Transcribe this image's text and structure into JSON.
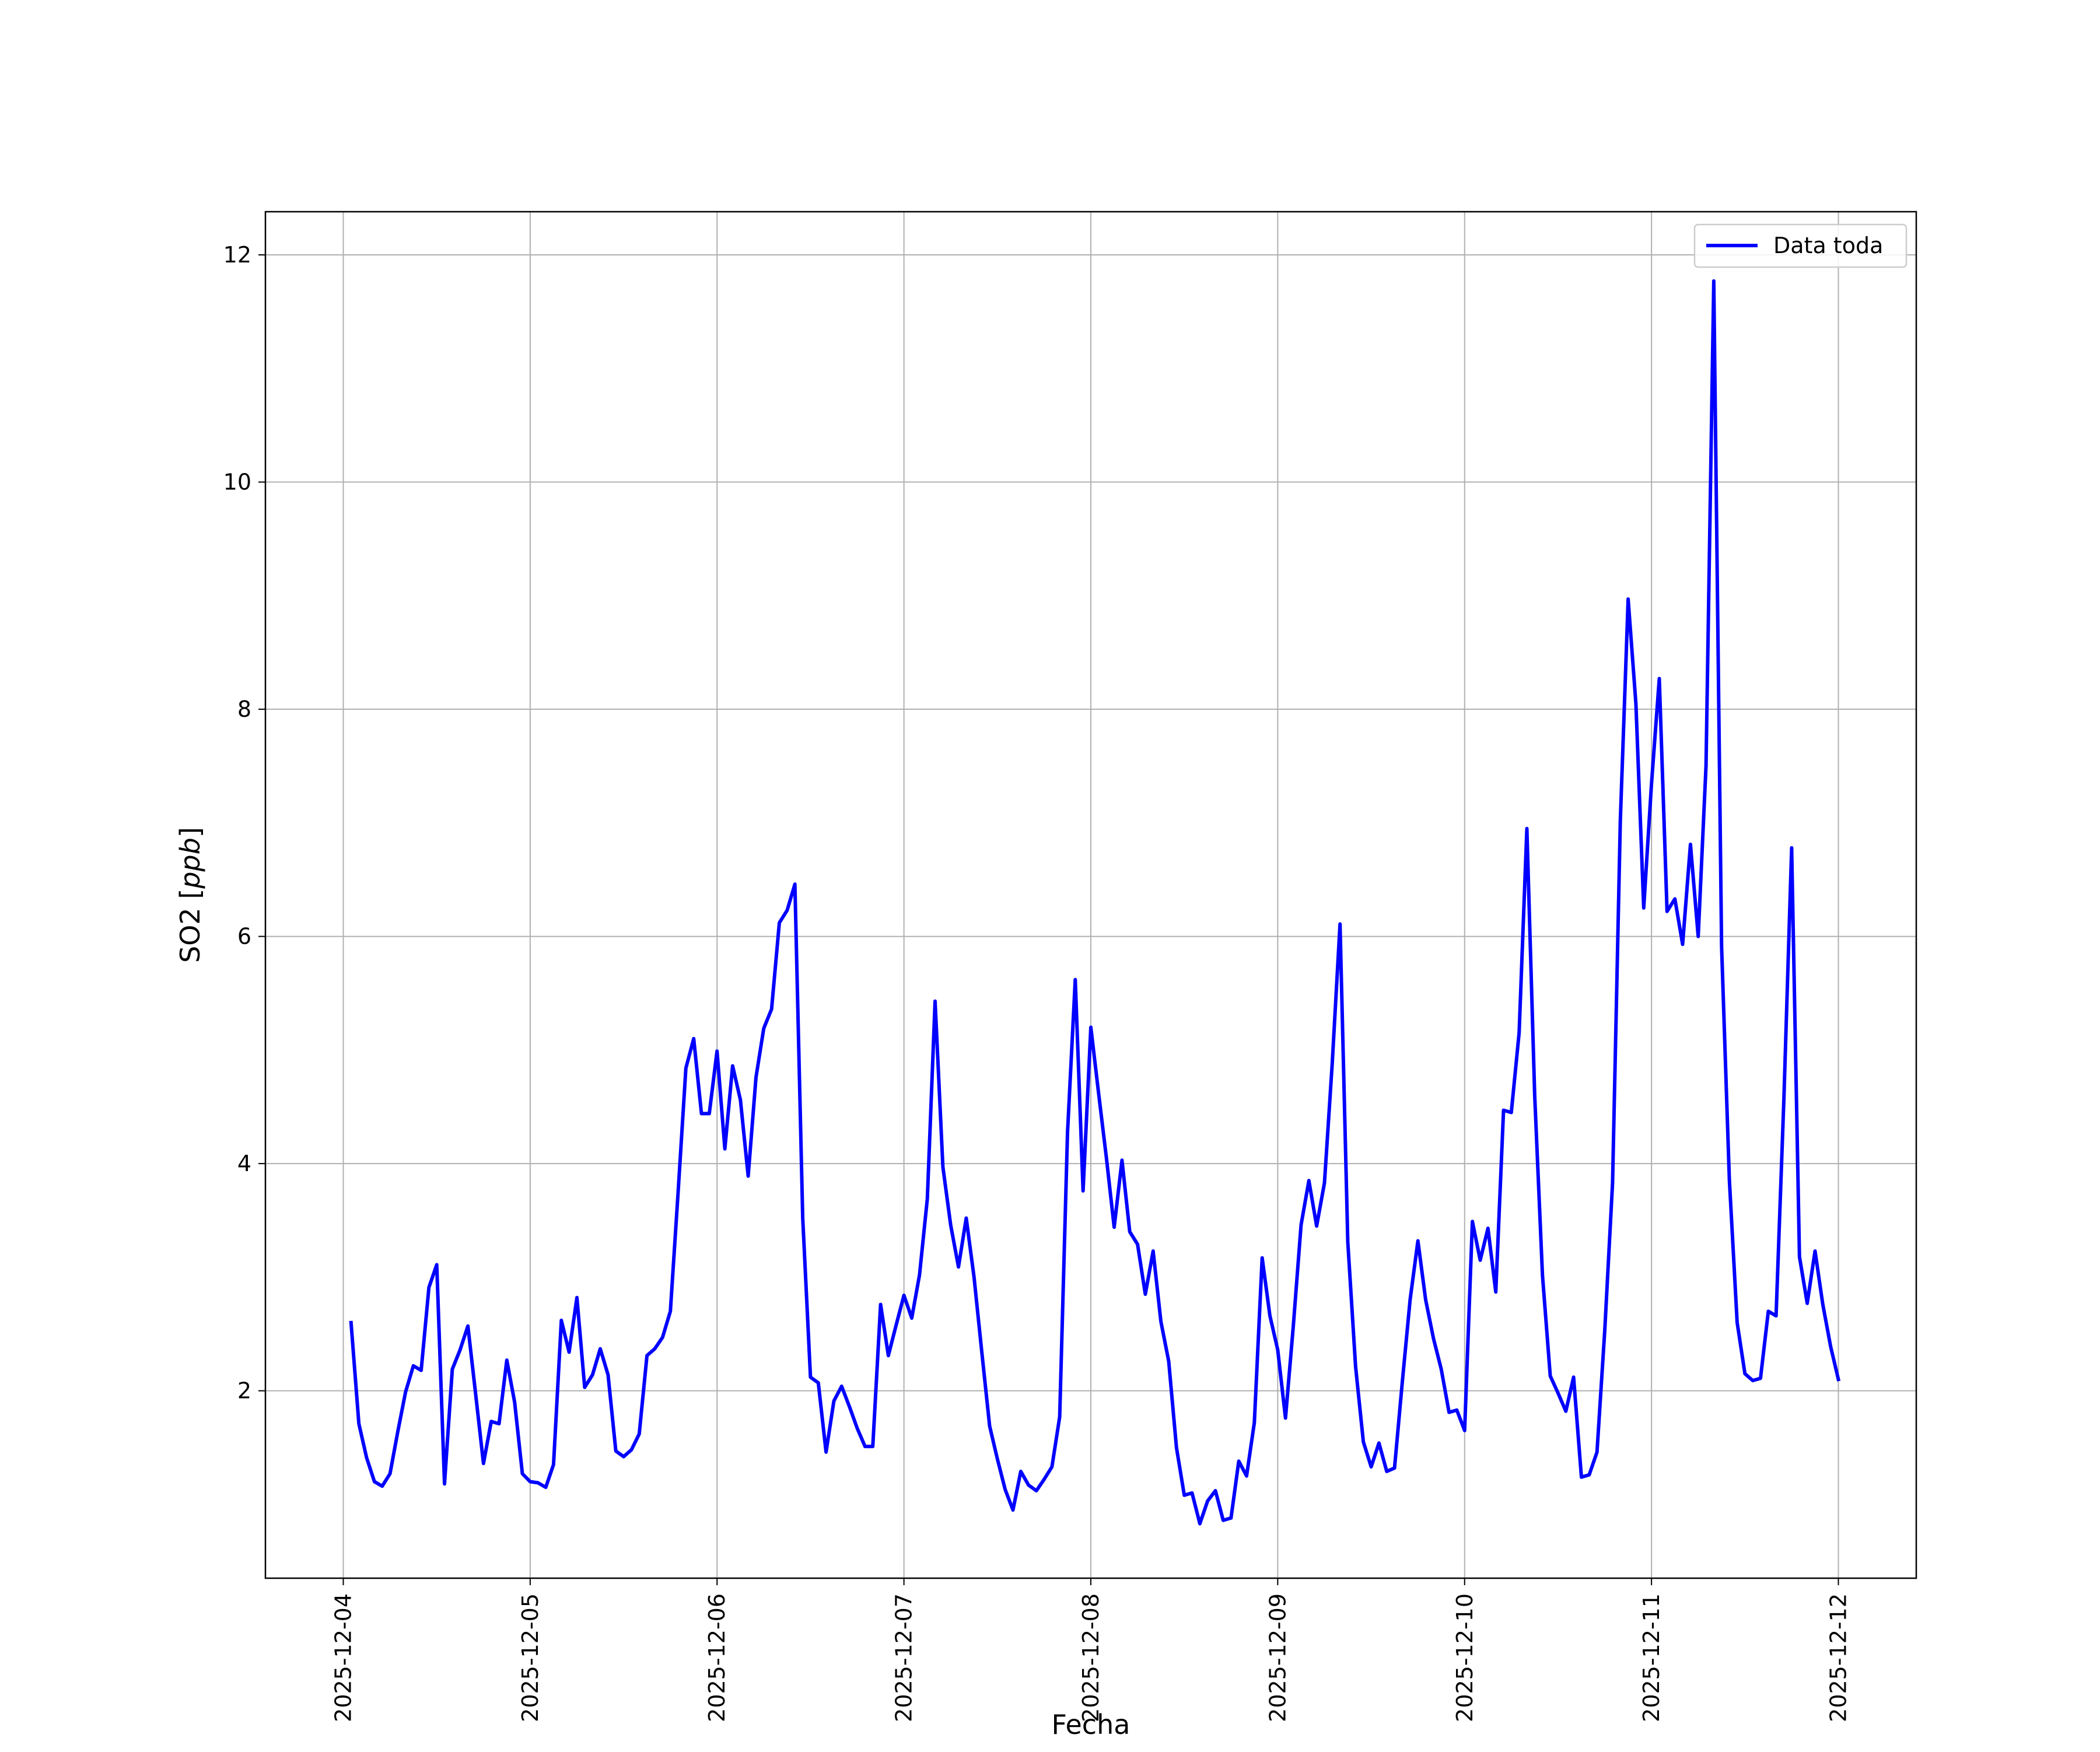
{
  "chart_data": {
    "type": "line",
    "title": "",
    "xlabel": "Fecha",
    "ylabel": "SO2 [ppb]",
    "ylabel_main": "SO2 ",
    "ylabel_unit": "ppb",
    "xlim": [
      "2025-12-03T14:00",
      "2025-12-12T10:00"
    ],
    "ylim": [
      0.35,
      12.38
    ],
    "x_ticks": [
      "2025-12-04",
      "2025-12-05",
      "2025-12-06",
      "2025-12-07",
      "2025-12-08",
      "2025-12-09",
      "2025-12-10",
      "2025-12-11",
      "2025-12-12"
    ],
    "y_ticks": [
      2,
      4,
      6,
      8,
      10,
      12
    ],
    "grid": true,
    "legend_position": "top-right",
    "series": [
      {
        "name": "Data toda",
        "color": "#0000ff",
        "x": [
          "2025-12-04T01:00",
          "2025-12-04T02:00",
          "2025-12-04T03:00",
          "2025-12-04T04:00",
          "2025-12-04T05:00",
          "2025-12-04T06:00",
          "2025-12-04T07:00",
          "2025-12-04T08:00",
          "2025-12-04T09:00",
          "2025-12-04T10:00",
          "2025-12-04T11:00",
          "2025-12-04T12:00",
          "2025-12-04T13:00",
          "2025-12-04T14:00",
          "2025-12-04T15:00",
          "2025-12-04T16:00",
          "2025-12-04T17:00",
          "2025-12-04T18:00",
          "2025-12-04T19:00",
          "2025-12-04T20:00",
          "2025-12-04T21:00",
          "2025-12-04T22:00",
          "2025-12-04T23:00",
          "2025-12-05T00:00",
          "2025-12-05T01:00",
          "2025-12-05T02:00",
          "2025-12-05T03:00",
          "2025-12-05T04:00",
          "2025-12-05T05:00",
          "2025-12-05T06:00",
          "2025-12-05T07:00",
          "2025-12-05T08:00",
          "2025-12-05T09:00",
          "2025-12-05T10:00",
          "2025-12-05T11:00",
          "2025-12-05T12:00",
          "2025-12-05T13:00",
          "2025-12-05T14:00",
          "2025-12-05T15:00",
          "2025-12-05T16:00",
          "2025-12-05T17:00",
          "2025-12-05T18:00",
          "2025-12-05T19:00",
          "2025-12-05T20:00",
          "2025-12-05T21:00",
          "2025-12-05T22:00",
          "2025-12-05T23:00",
          "2025-12-06T00:00",
          "2025-12-06T01:00",
          "2025-12-06T02:00",
          "2025-12-06T03:00",
          "2025-12-06T04:00",
          "2025-12-06T05:00",
          "2025-12-06T06:00",
          "2025-12-06T07:00",
          "2025-12-06T08:00",
          "2025-12-06T09:00",
          "2025-12-06T10:00",
          "2025-12-06T11:00",
          "2025-12-06T12:00",
          "2025-12-06T13:00",
          "2025-12-06T14:00",
          "2025-12-06T15:00",
          "2025-12-06T16:00",
          "2025-12-06T17:00",
          "2025-12-06T18:00",
          "2025-12-06T19:00",
          "2025-12-06T20:00",
          "2025-12-06T21:00",
          "2025-12-06T22:00",
          "2025-12-06T23:00",
          "2025-12-07T00:00",
          "2025-12-07T01:00",
          "2025-12-07T02:00",
          "2025-12-07T03:00",
          "2025-12-07T04:00",
          "2025-12-07T05:00",
          "2025-12-07T06:00",
          "2025-12-07T07:00",
          "2025-12-07T08:00",
          "2025-12-07T09:00",
          "2025-12-07T10:00",
          "2025-12-07T11:00",
          "2025-12-07T12:00",
          "2025-12-07T13:00",
          "2025-12-07T14:00",
          "2025-12-07T15:00",
          "2025-12-07T16:00",
          "2025-12-07T17:00",
          "2025-12-07T18:00",
          "2025-12-07T19:00",
          "2025-12-07T20:00",
          "2025-12-07T21:00",
          "2025-12-07T22:00",
          "2025-12-07T23:00",
          "2025-12-08T00:00",
          "2025-12-08T01:00",
          "2025-12-08T02:00",
          "2025-12-08T03:00",
          "2025-12-08T04:00",
          "2025-12-08T05:00",
          "2025-12-08T06:00",
          "2025-12-08T07:00",
          "2025-12-08T08:00",
          "2025-12-08T09:00",
          "2025-12-08T10:00",
          "2025-12-08T11:00",
          "2025-12-08T12:00",
          "2025-12-08T13:00",
          "2025-12-08T14:00",
          "2025-12-08T15:00",
          "2025-12-08T16:00",
          "2025-12-08T17:00",
          "2025-12-08T18:00",
          "2025-12-08T19:00",
          "2025-12-08T20:00",
          "2025-12-08T21:00",
          "2025-12-08T22:00",
          "2025-12-08T23:00",
          "2025-12-09T00:00",
          "2025-12-09T01:00",
          "2025-12-09T02:00",
          "2025-12-09T03:00",
          "2025-12-09T04:00",
          "2025-12-09T05:00",
          "2025-12-09T06:00",
          "2025-12-09T07:00",
          "2025-12-09T08:00",
          "2025-12-09T09:00",
          "2025-12-09T10:00",
          "2025-12-09T11:00",
          "2025-12-09T12:00",
          "2025-12-09T13:00",
          "2025-12-09T14:00",
          "2025-12-09T15:00",
          "2025-12-09T16:00",
          "2025-12-09T17:00",
          "2025-12-09T18:00",
          "2025-12-09T19:00",
          "2025-12-09T20:00",
          "2025-12-09T21:00",
          "2025-12-09T22:00",
          "2025-12-09T23:00",
          "2025-12-10T00:00",
          "2025-12-10T01:00",
          "2025-12-10T02:00",
          "2025-12-10T03:00",
          "2025-12-10T04:00",
          "2025-12-10T05:00",
          "2025-12-10T06:00",
          "2025-12-10T07:00",
          "2025-12-10T08:00",
          "2025-12-10T09:00",
          "2025-12-10T10:00",
          "2025-12-10T11:00",
          "2025-12-10T12:00",
          "2025-12-10T13:00",
          "2025-12-10T14:00",
          "2025-12-10T15:00",
          "2025-12-10T16:00",
          "2025-12-10T17:00",
          "2025-12-10T18:00",
          "2025-12-10T19:00",
          "2025-12-10T20:00",
          "2025-12-10T21:00",
          "2025-12-10T22:00",
          "2025-12-10T23:00",
          "2025-12-11T00:00",
          "2025-12-11T01:00",
          "2025-12-11T02:00",
          "2025-12-11T03:00",
          "2025-12-11T04:00",
          "2025-12-11T05:00",
          "2025-12-11T06:00",
          "2025-12-11T07:00",
          "2025-12-11T08:00",
          "2025-12-11T09:00",
          "2025-12-11T10:00",
          "2025-12-11T11:00",
          "2025-12-11T12:00",
          "2025-12-11T13:00",
          "2025-12-11T14:00",
          "2025-12-11T15:00",
          "2025-12-11T16:00",
          "2025-12-11T17:00",
          "2025-12-11T18:00",
          "2025-12-11T19:00",
          "2025-12-11T20:00",
          "2025-12-11T21:00",
          "2025-12-11T22:00",
          "2025-12-11T23:00",
          "2025-12-12T00:00"
        ],
        "values": [
          2.6,
          1.71,
          1.41,
          1.2,
          1.16,
          1.27,
          1.64,
          1.99,
          2.22,
          2.18,
          2.91,
          3.11,
          1.18,
          2.19,
          2.36,
          2.57,
          1.97,
          1.36,
          1.73,
          1.71,
          2.27,
          1.9,
          1.27,
          1.2,
          1.19,
          1.15,
          1.35,
          2.62,
          2.34,
          2.82,
          2.03,
          2.14,
          2.37,
          2.14,
          1.47,
          1.42,
          1.48,
          1.62,
          2.31,
          2.37,
          2.47,
          2.7,
          3.75,
          4.84,
          5.1,
          4.44,
          4.44,
          4.99,
          4.13,
          4.86,
          4.56,
          3.89,
          4.76,
          5.19,
          5.36,
          6.12,
          6.23,
          6.46,
          3.52,
          2.12,
          2.07,
          1.46,
          1.91,
          2.04,
          1.86,
          1.67,
          1.51,
          1.51,
          2.76,
          2.31,
          2.58,
          2.84,
          2.64,
          3.02,
          3.69,
          5.43,
          3.97,
          3.46,
          3.09,
          3.52,
          3.0,
          2.34,
          1.69,
          1.4,
          1.13,
          0.95,
          1.29,
          1.17,
          1.12,
          1.22,
          1.33,
          1.77,
          4.27,
          5.62,
          3.76,
          5.2,
          4.62,
          4.05,
          3.44,
          4.03,
          3.4,
          3.29,
          2.85,
          3.23,
          2.61,
          2.26,
          1.5,
          1.08,
          1.1,
          0.83,
          1.03,
          1.12,
          0.86,
          0.88,
          1.38,
          1.25,
          1.72,
          3.17,
          2.66,
          2.36,
          1.76,
          2.57,
          3.46,
          3.85,
          3.45,
          3.83,
          4.88,
          6.11,
          3.31,
          2.21,
          1.55,
          1.33,
          1.54,
          1.29,
          1.32,
          2.08,
          2.8,
          3.32,
          2.8,
          2.46,
          2.19,
          1.81,
          1.83,
          1.65,
          3.49,
          3.15,
          3.43,
          2.87,
          4.47,
          4.45,
          5.15,
          6.95,
          4.6,
          3.02,
          2.13,
          1.98,
          1.82,
          2.12,
          1.24,
          1.26,
          1.46,
          2.53,
          3.83,
          7.02,
          8.97,
          8.05,
          6.25,
          7.34,
          8.27,
          6.22,
          6.33,
          5.93,
          6.81,
          6.0,
          7.5,
          11.77,
          5.91,
          3.86,
          2.6,
          2.15,
          2.09,
          2.11,
          2.7,
          2.66,
          4.57,
          6.78,
          3.18,
          2.77,
          3.23,
          2.76,
          2.39,
          2.1
        ]
      }
    ]
  }
}
